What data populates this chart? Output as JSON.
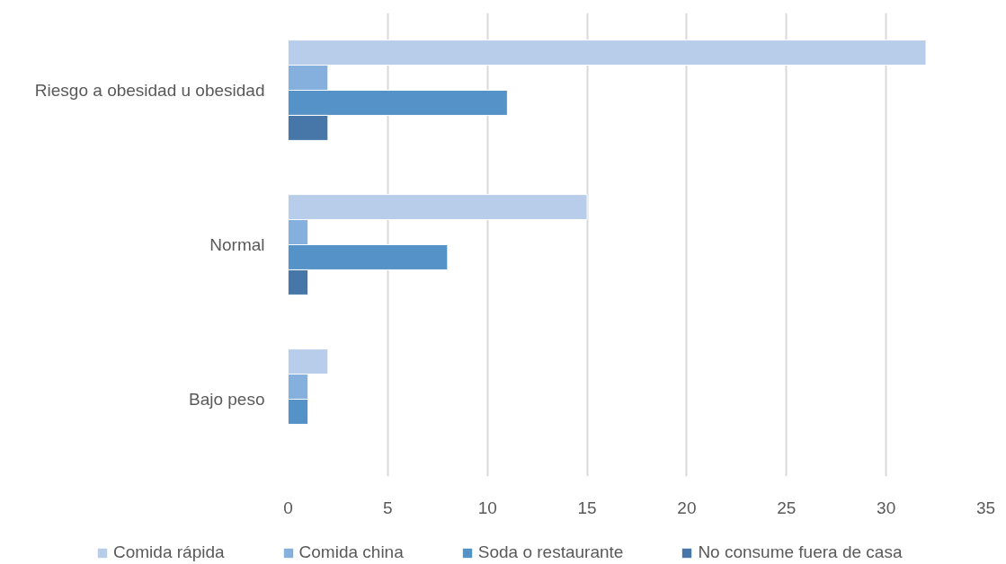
{
  "chart_data": {
    "type": "bar",
    "orientation": "horizontal",
    "categories": [
      "Riesgo a obesidad u obesidad",
      "Normal",
      "Bajo peso"
    ],
    "series": [
      {
        "name": "Comida rápida",
        "color": "#b7cde9",
        "values": [
          32,
          15,
          2
        ]
      },
      {
        "name": "Comida china",
        "color": "#85afdc",
        "values": [
          2,
          1,
          1
        ]
      },
      {
        "name": "Soda o restaurante",
        "color": "#5592c8",
        "values": [
          11,
          8,
          1
        ]
      },
      {
        "name": "No consume fuera de casa",
        "color": "#4677a8",
        "values": [
          2,
          1,
          null
        ]
      }
    ],
    "xlim": [
      0,
      35
    ],
    "xticks": [
      0,
      5,
      10,
      15,
      20,
      25,
      30,
      35
    ],
    "grid": "x",
    "legend": "bottom"
  }
}
